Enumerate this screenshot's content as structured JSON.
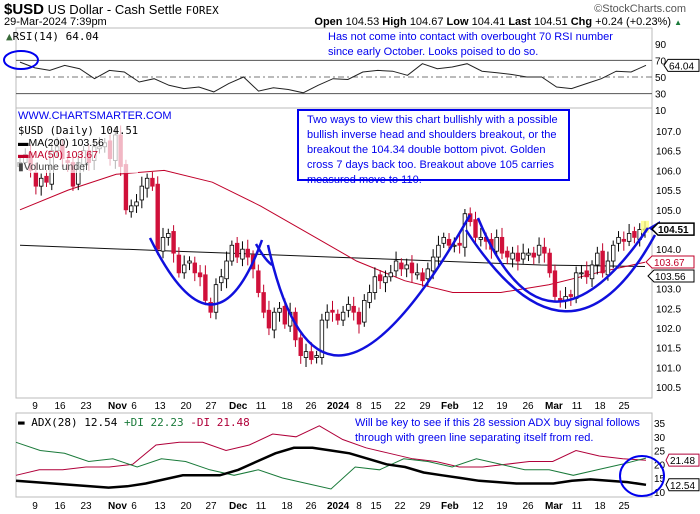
{
  "header": {
    "symbol": "$USD",
    "name": "US Dollar - Cash Settle",
    "exchange": "FOREX",
    "copyright": "©StockCharts.com",
    "datetime": "29-Mar-2024 7:39pm",
    "open_label": "Open",
    "open": "104.53",
    "high_label": "High",
    "high": "104.67",
    "low_label": "Low",
    "low": "104.41",
    "last_label": "Last",
    "last": "104.51",
    "chg_label": "Chg",
    "chg": "+0.24 (+0.23%)"
  },
  "rsi": {
    "legend": "RSI(14) 64.04",
    "value_tag": "64.04",
    "note": "Has not come into contact with overbought 70 RSI number since early October. Looks poised to do so.",
    "ticks": [
      90,
      70,
      50,
      30,
      10
    ],
    "values": [
      68,
      61,
      58,
      64,
      60,
      48,
      58,
      56,
      44,
      48,
      40,
      36,
      38,
      32,
      42,
      50,
      33,
      37,
      35,
      31,
      40,
      48,
      47,
      56,
      58,
      57,
      52,
      66,
      60,
      62,
      66,
      57,
      55,
      53,
      50,
      50,
      38,
      36,
      42,
      48,
      57,
      56,
      64.04
    ]
  },
  "price": {
    "website": "WWW.CHARTSMARTER.COM",
    "legend": "$USD (Daily) 104.51",
    "ma200_legend": "MA(200) 103.56",
    "ma50_legend": "MA(50) 103.67",
    "volume_legend": "Volume undef",
    "last_tag": "104.51",
    "ma200_tag": "103.56",
    "ma50_tag": "103.67",
    "note": "Two ways to view this chart bullishly with a possible bullish inverse head and shoulders breakout, or the breakout the 104.34 double bottom pivot. Golden cross 7 days back too. Breakout above 105 carries measured move to 110.",
    "ticks": [
      "107.0",
      "106.5",
      "106.0",
      "105.5",
      "105.0",
      "104.0",
      "103.0",
      "102.5",
      "102.0",
      "101.5",
      "101.0",
      "100.5"
    ]
  },
  "chart_data": {
    "type": "candlestick",
    "title": "$USD (Daily)",
    "ylim": [
      100.3,
      107.2
    ],
    "closes": [
      106.2,
      106.4,
      106.0,
      105.6,
      105.8,
      105.7,
      106.5,
      106.6,
      106.3,
      106.2,
      105.6,
      106.2,
      106.5,
      106.2,
      106.6,
      106.6,
      106.7,
      106.3,
      106.9,
      106.1,
      105.0,
      105.1,
      105.2,
      105.6,
      105.8,
      105.6,
      104.0,
      104.3,
      104.4,
      103.9,
      103.4,
      103.6,
      103.7,
      103.4,
      103.3,
      102.7,
      102.4,
      103.1,
      103.3,
      103.7,
      104.1,
      103.8,
      104.0,
      103.8,
      103.5,
      102.9,
      102.4,
      102.0,
      102.4,
      102.5,
      102.1,
      102.4,
      101.7,
      101.3,
      101.4,
      101.2,
      101.3,
      102.2,
      102.4,
      102.4,
      102.2,
      102.4,
      102.6,
      102.4,
      102.1,
      102.7,
      102.9,
      103.3,
      103.2,
      103.3,
      103.4,
      103.7,
      103.5,
      103.6,
      103.4,
      103.4,
      103.2,
      103.5,
      103.8,
      104.1,
      104.3,
      104.1,
      104.1,
      104.1,
      104.9,
      104.7,
      104.3,
      104.3,
      104.2,
      104.0,
      104.3,
      103.9,
      103.8,
      103.9,
      103.7,
      103.9,
      103.9,
      103.8,
      104.1,
      103.9,
      103.4,
      102.8,
      102.7,
      102.8,
      102.8,
      103.4,
      103.4,
      103.3,
      103.6,
      103.9,
      103.4,
      103.7,
      104.1,
      104.3,
      104.2,
      104.4,
      104.3,
      104.5,
      104.51
    ],
    "ma200": [
      104.1,
      104.05,
      104.0,
      103.95,
      103.9,
      103.85,
      103.8,
      103.75,
      103.7,
      103.65,
      103.6,
      103.58,
      103.56
    ],
    "ma50": [
      105.0,
      105.5,
      105.9,
      106.0,
      105.7,
      105.1,
      104.4,
      103.7,
      103.2,
      102.9,
      102.9,
      103.1,
      103.4,
      103.67
    ],
    "xlabels": [
      "9",
      "16",
      "23",
      "Nov",
      "6",
      "13",
      "20",
      "27",
      "Dec",
      "11",
      "18",
      "26",
      "2024",
      "8",
      "15",
      "22",
      "29",
      "Feb",
      "12",
      "19",
      "26",
      "Mar",
      "11",
      "18",
      "25"
    ]
  },
  "adx": {
    "legend_adx": "ADX(28) 12.54",
    "legend_pdi": "+DI 22.23",
    "legend_mdi": "-DI 21.48",
    "adx_tag": "12.54",
    "di_tag": "21.48",
    "note": "Will be key to see if this 28 session ADX buy signal follows through with green line separating itself from red.",
    "ticks": [
      35,
      30,
      25,
      20,
      15,
      10
    ],
    "adx": [
      14,
      13.5,
      13,
      12.5,
      12,
      11.5,
      12,
      13,
      14.5,
      16,
      16,
      16,
      18,
      21,
      24,
      26,
      26,
      25,
      24,
      22,
      20,
      19,
      17,
      16,
      15,
      14,
      13.5,
      13,
      13,
      13,
      14,
      14.5,
      14,
      13.5,
      12.54
    ],
    "pdi": [
      28,
      25,
      24,
      21,
      22,
      19,
      22,
      21,
      18,
      16,
      18,
      15,
      13,
      11,
      19,
      18,
      22,
      21,
      19,
      22,
      20,
      18,
      18,
      16,
      18,
      20,
      22.23
    ],
    "mdi": [
      16,
      18,
      18,
      19,
      19,
      20,
      27,
      28,
      28,
      25,
      27,
      31,
      30,
      34,
      29,
      26,
      24,
      22,
      21,
      19,
      19,
      20,
      21,
      21,
      25,
      23,
      22,
      21.48
    ],
    "colors": {
      "adx": "#000000",
      "pdi": "#1a7a3a",
      "mdi": "#b0003a"
    }
  }
}
